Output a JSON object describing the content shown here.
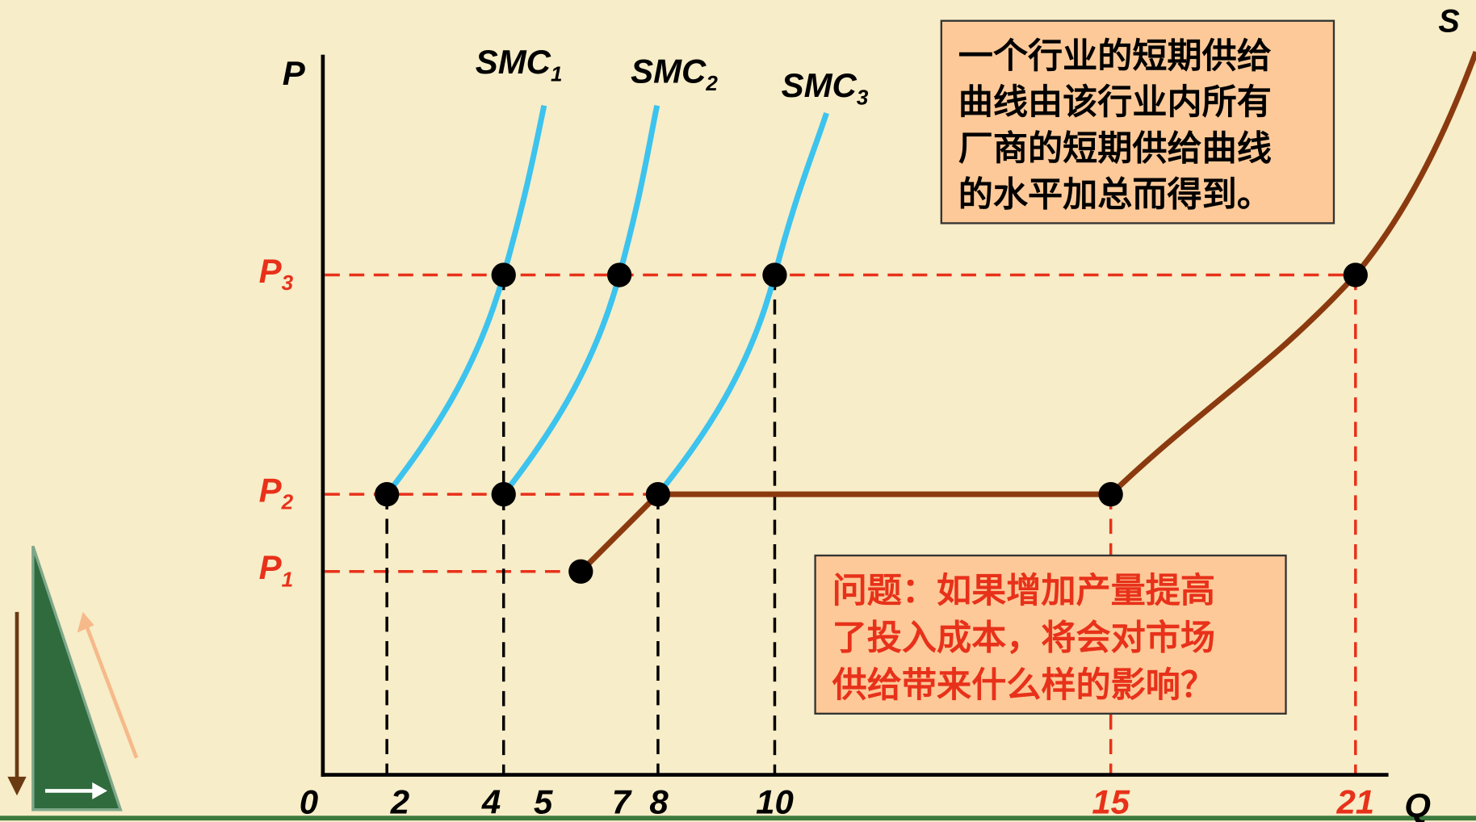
{
  "diagram": {
    "y_axis_label": "P",
    "x_axis_label": "Q",
    "price_levels": [
      {
        "text": "P",
        "sub": "3"
      },
      {
        "text": "P",
        "sub": "2"
      },
      {
        "text": "P",
        "sub": "1"
      }
    ],
    "x_ticks": [
      0,
      2,
      4,
      5,
      7,
      8,
      10,
      15,
      21
    ],
    "curves": [
      {
        "text": "SMC",
        "sub": "1"
      },
      {
        "text": "SMC",
        "sub": "2"
      },
      {
        "text": "SMC",
        "sub": "3"
      }
    ],
    "supply_label": "S",
    "note_box": {
      "lines": [
        "一个行业的短期供给",
        "曲线由该行业内所有",
        "厂商的短期供给曲线",
        "的水平加总而得到。"
      ]
    },
    "question_box": {
      "lines": [
        "问题：如果增加产量提高",
        "了投入成本，将会对市场",
        "供给带来什么样的影响？"
      ]
    }
  }
}
